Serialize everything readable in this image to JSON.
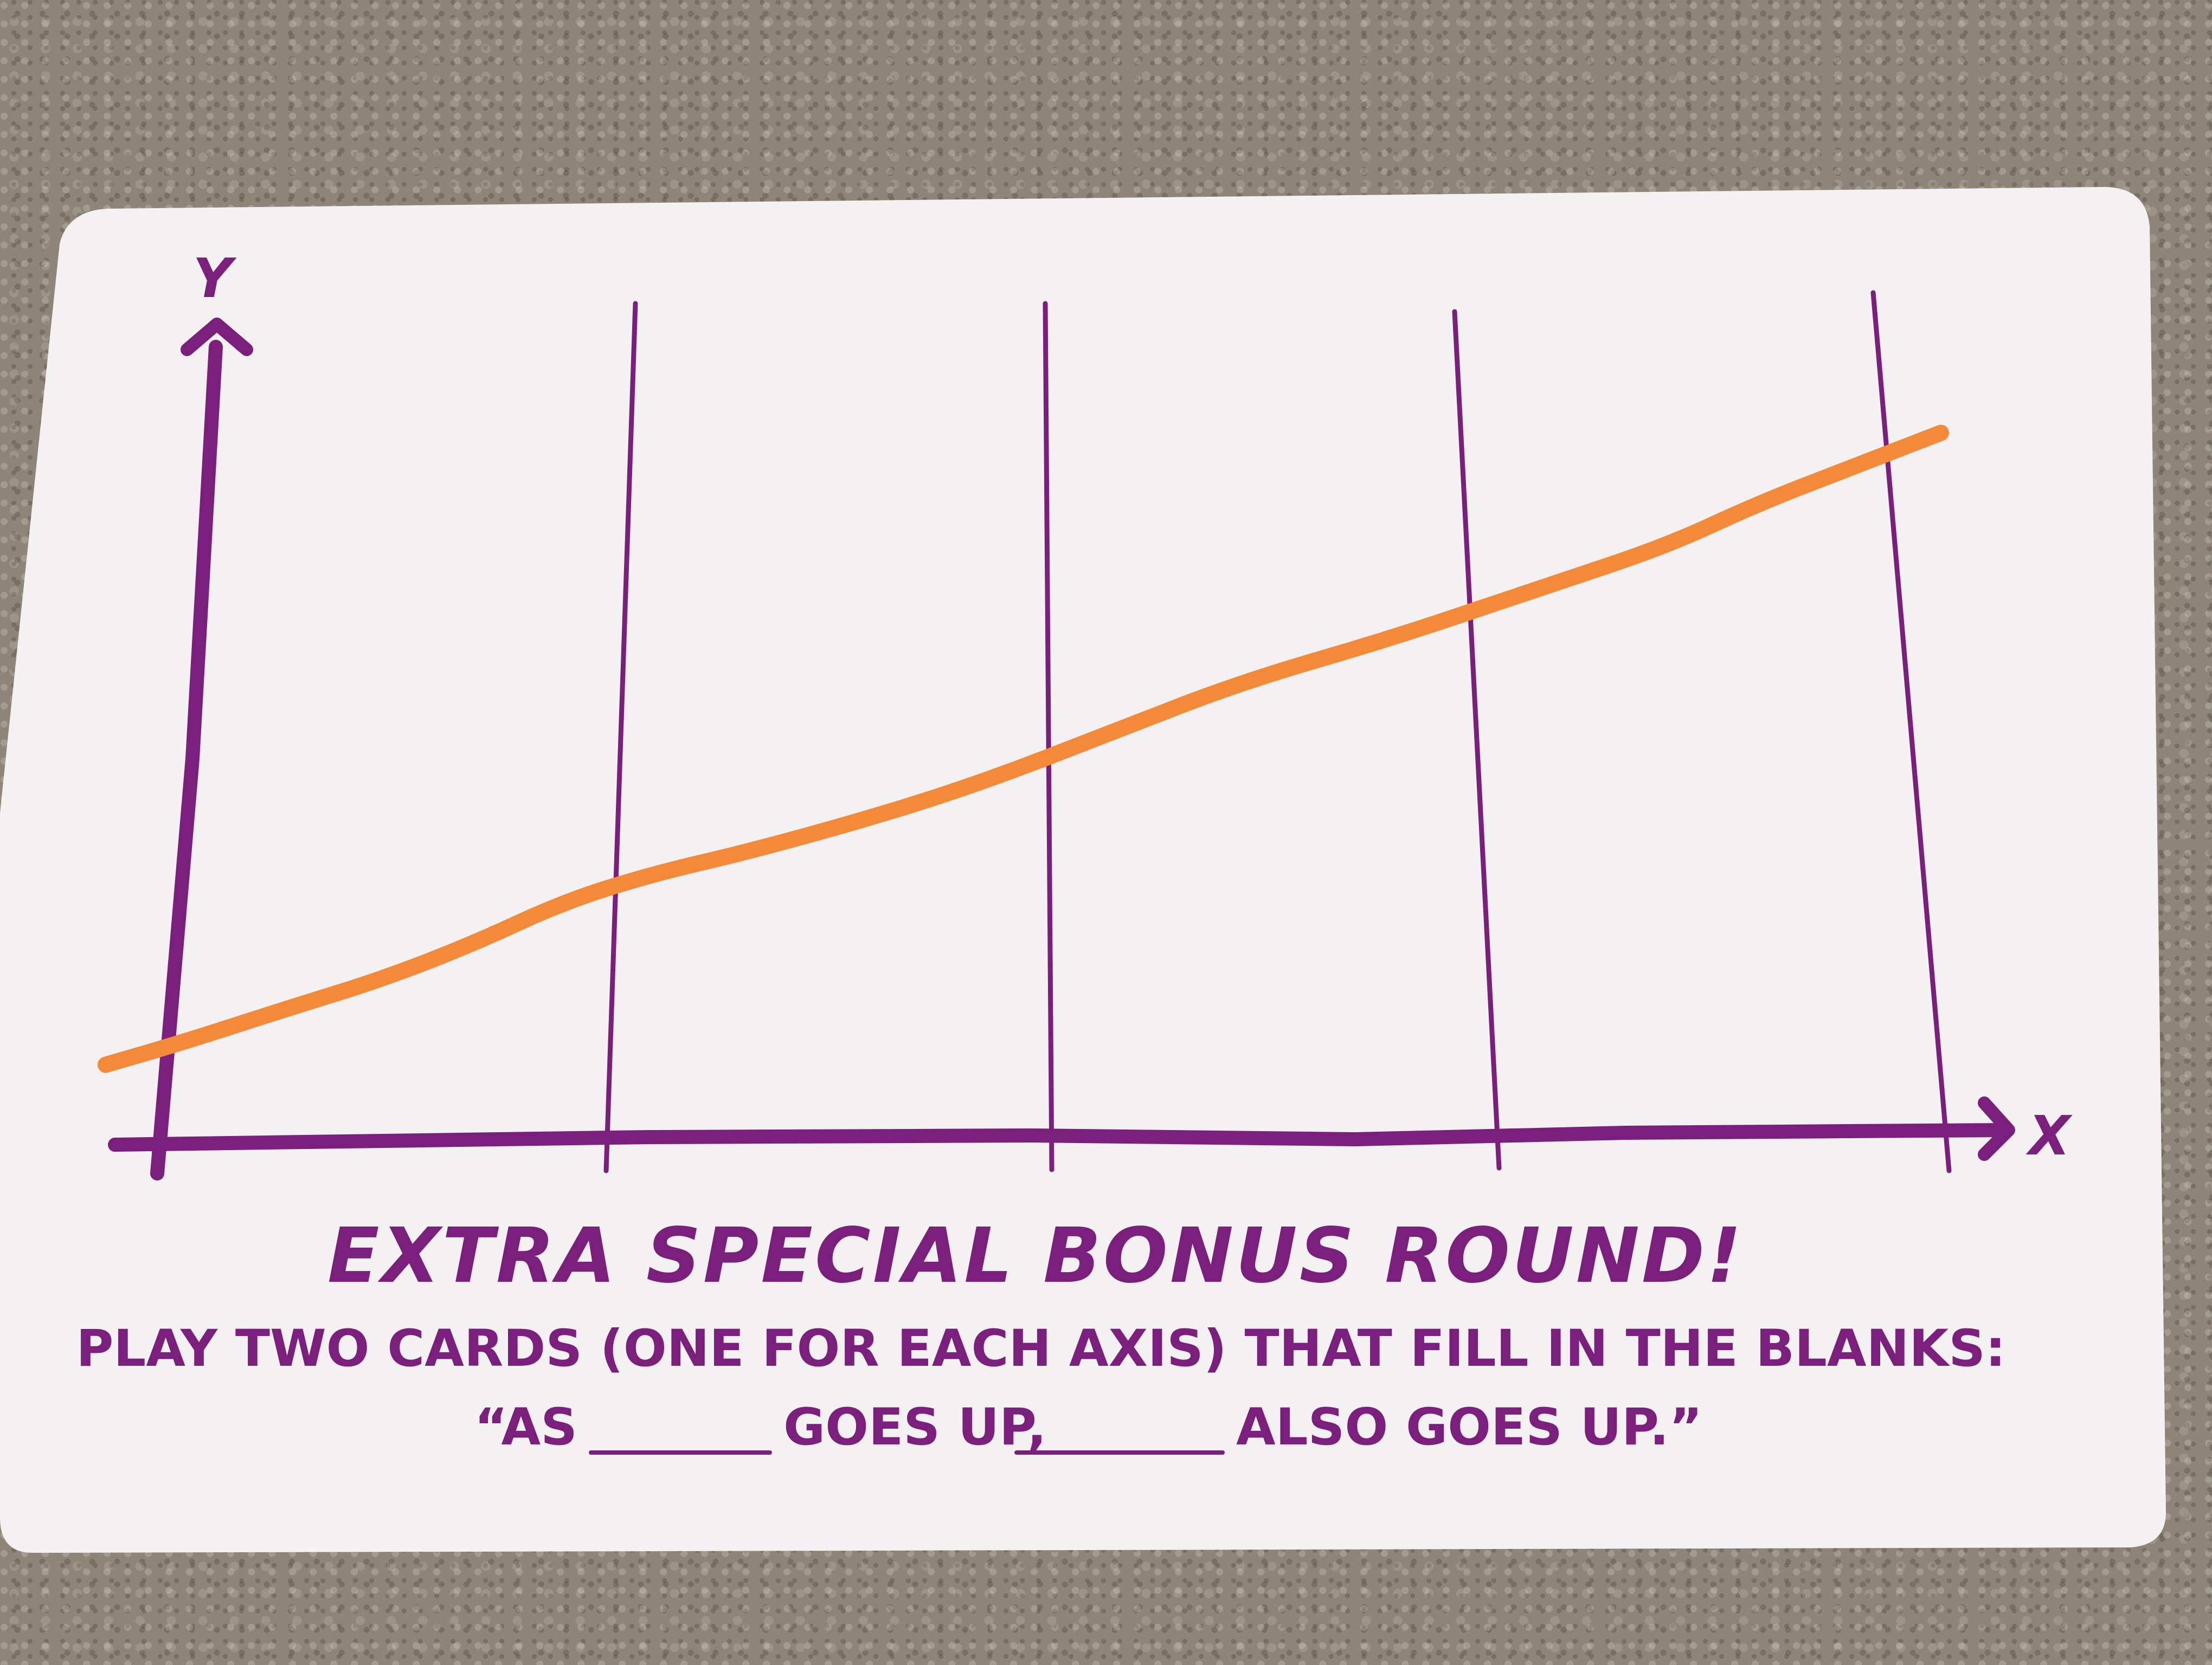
{
  "chart_data": {
    "type": "line",
    "title": "EXTRA SPECIAL BONUS ROUND!",
    "xlabel": "X",
    "ylabel": "Y",
    "xlim": [
      0,
      100
    ],
    "ylim": [
      0,
      100
    ],
    "grid": "vertical lines only",
    "series": [
      {
        "x": [
          0,
          4,
          10,
          15,
          20,
          25,
          30,
          35,
          42,
          48,
          55,
          62,
          70,
          78,
          85,
          90,
          95,
          100
        ],
        "y": [
          5,
          8,
          13,
          17,
          22,
          28,
          32,
          35,
          40,
          45,
          52,
          59,
          65,
          72,
          78,
          84,
          89,
          94
        ],
        "color": "#f28a3a"
      }
    ]
  },
  "card": {
    "title": "EXTRA SPECIAL BONUS ROUND!",
    "instruction_line1": "PLAY TWO CARDS (ONE FOR EACH AXIS) THAT FILL IN THE BLANKS:",
    "prompt_part1": "“AS",
    "prompt_part2": "GOES UP,",
    "prompt_part3": "ALSO GOES UP.”",
    "colors": {
      "ink": "#7b1f7c",
      "line": "#f28a3a",
      "card": "#f3f1f2"
    }
  }
}
